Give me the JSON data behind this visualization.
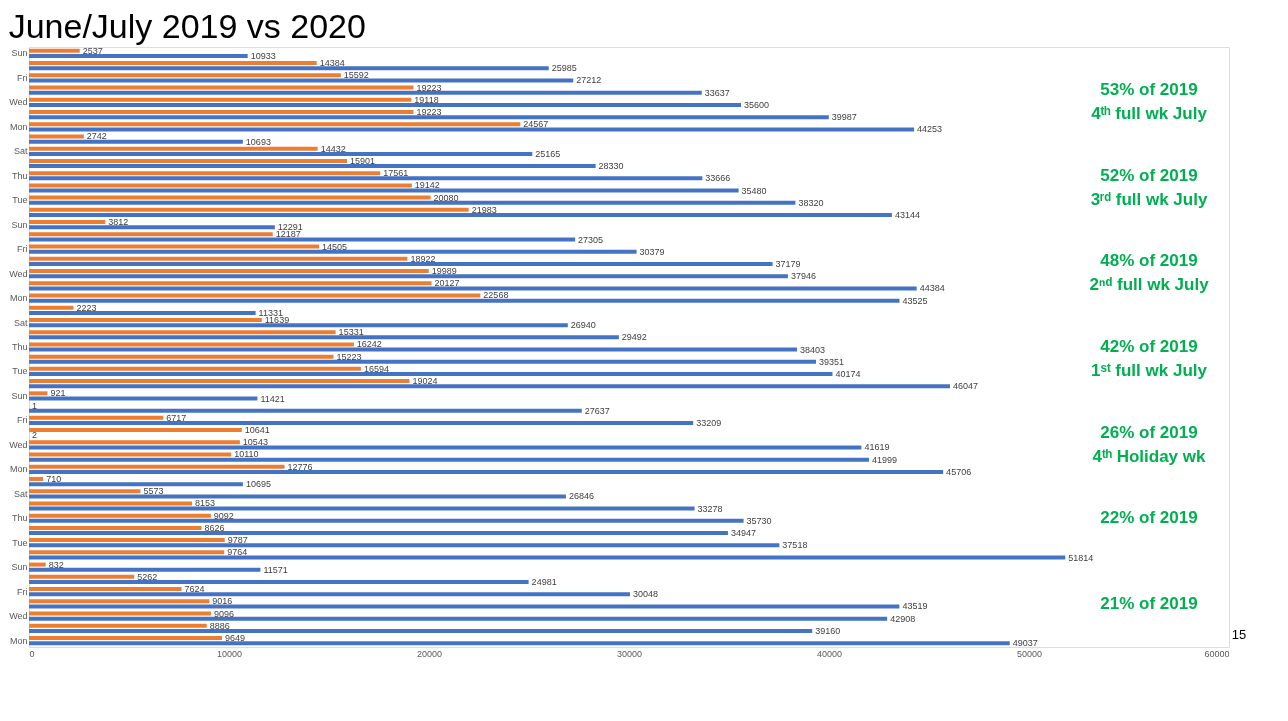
{
  "chart_data": {
    "type": "bar",
    "orientation": "horizontal",
    "title": "June/July 2019 vs 2020",
    "categories": [
      "Sun",
      null,
      "Fri",
      null,
      "Wed",
      null,
      "Mon",
      null,
      "Sat",
      null,
      "Thu",
      null,
      "Tue",
      null,
      "Sun",
      null,
      "Fri",
      null,
      "Wed",
      null,
      "Mon",
      null,
      "Sat",
      null,
      "Thu",
      null,
      "Tue",
      null,
      "Sun",
      null,
      "Fri",
      null,
      "Wed",
      null,
      "Mon",
      null,
      "Sat",
      null,
      "Thu",
      null,
      "Tue",
      null,
      "Sun",
      null,
      "Fri",
      null,
      "Wed",
      null,
      "Mon"
    ],
    "series": [
      {
        "color": "#ed7d31",
        "values": [
          2537,
          14384,
          15592,
          19223,
          19118,
          19223,
          24567,
          2742,
          14432,
          15901,
          17561,
          19142,
          20080,
          21983,
          3812,
          12187,
          14505,
          18922,
          19989,
          20127,
          22568,
          2223,
          11639,
          15331,
          16242,
          15223,
          16594,
          19024,
          921,
          1,
          6717,
          10641,
          10543,
          10110,
          12776,
          710,
          5573,
          8153,
          9092,
          8626,
          9787,
          9764,
          832,
          5262,
          7624,
          9016,
          9096,
          8886,
          9649
        ]
      },
      {
        "color": "#4472c4",
        "values": [
          10933,
          25985,
          27212,
          33637,
          35600,
          39987,
          44253,
          10693,
          25165,
          28330,
          33666,
          35480,
          38320,
          43144,
          12291,
          27305,
          30379,
          37179,
          37946,
          44384,
          43525,
          11331,
          26940,
          29492,
          38403,
          39351,
          40174,
          46047,
          11421,
          27637,
          33209,
          2,
          41619,
          41999,
          45706,
          10695,
          26846,
          33278,
          35730,
          34947,
          37518,
          51814,
          11571,
          24981,
          30048,
          43519,
          42908,
          39160,
          49037
        ]
      }
    ],
    "xlim": [
      0,
      60000
    ],
    "xticks": [
      0,
      10000,
      20000,
      30000,
      40000,
      50000,
      60000
    ],
    "data_labels": true,
    "grid": false,
    "legend": false,
    "annotations": [
      "53% of 2019\n4ᵗʰ full wk July",
      "52% of 2019\n3ʳᵈ full wk July",
      "48% of 2019\n2ⁿᵈ full wk July",
      "42% of 2019\n1ˢᵗ full wk July",
      "26% of 2019\n4ᵗʰ Holiday wk",
      "22% of 2019",
      "21% of 2019",
      "15"
    ]
  }
}
